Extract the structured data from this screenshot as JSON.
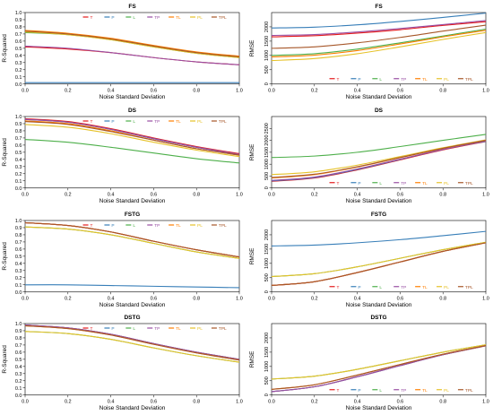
{
  "figure": {
    "legend_labels": [
      "T",
      "P",
      "L",
      "TP",
      "TL",
      "PL",
      "TPL"
    ],
    "legend_colors": [
      "#e41a1c",
      "#377eb8",
      "#4daf4a",
      "#984ea3",
      "#ff7f00",
      "#e6c229",
      "#a65628"
    ]
  },
  "chart_data": [
    {
      "type": "line",
      "title": "FS",
      "xlabel": "Noise Standard Deviation",
      "ylabel": "R-Squared",
      "xlim": [
        0,
        1
      ],
      "ylim": [
        0,
        1
      ],
      "xticks": [
        "0.0",
        "0.2",
        "0.4",
        "0.6",
        "0.8",
        "1.0"
      ],
      "yticks": [
        "0.0",
        "0.1",
        "0.2",
        "0.3",
        "0.4",
        "0.5",
        "0.6",
        "0.7",
        "0.8",
        "0.9",
        "1.0"
      ],
      "legend_position": "top",
      "x": [
        0,
        0.2,
        0.4,
        0.6,
        0.8,
        1.0
      ],
      "series": [
        {
          "name": "T",
          "values": [
            0.52,
            0.49,
            0.44,
            0.37,
            0.31,
            0.27
          ]
        },
        {
          "name": "P",
          "values": [
            0.02,
            0.02,
            0.02,
            0.02,
            0.02,
            0.02
          ]
        },
        {
          "name": "L",
          "values": [
            0.72,
            0.69,
            0.62,
            0.52,
            0.43,
            0.37
          ]
        },
        {
          "name": "TP",
          "values": [
            0.53,
            0.5,
            0.44,
            0.37,
            0.31,
            0.27
          ]
        },
        {
          "name": "TL",
          "values": [
            0.75,
            0.71,
            0.64,
            0.54,
            0.45,
            0.39
          ]
        },
        {
          "name": "PL",
          "values": [
            0.73,
            0.69,
            0.62,
            0.52,
            0.43,
            0.37
          ]
        },
        {
          "name": "TPL",
          "values": [
            0.74,
            0.7,
            0.63,
            0.53,
            0.44,
            0.38
          ]
        }
      ]
    },
    {
      "type": "line",
      "title": "FS",
      "xlabel": "Noise Standard Deviation",
      "ylabel": "RMSE",
      "xlim": [
        0,
        1
      ],
      "ylim": [
        0,
        2500
      ],
      "xticks": [
        "0.0",
        "0.2",
        "0.4",
        "0.6",
        "0.8",
        "1.0"
      ],
      "yticks": [
        "0",
        "500",
        "1000",
        "1500",
        "2000"
      ],
      "legend_position": "bottom",
      "x": [
        0,
        0.2,
        0.4,
        0.6,
        0.8,
        1.0
      ],
      "series": [
        {
          "name": "T",
          "values": [
            1650,
            1690,
            1780,
            1900,
            2050,
            2180
          ]
        },
        {
          "name": "P",
          "values": [
            1960,
            1990,
            2070,
            2190,
            2330,
            2480
          ]
        },
        {
          "name": "L",
          "values": [
            1000,
            1060,
            1220,
            1440,
            1680,
            1920
          ]
        },
        {
          "name": "TP",
          "values": [
            1700,
            1730,
            1820,
            1940,
            2080,
            2220
          ]
        },
        {
          "name": "TL",
          "values": [
            950,
            1010,
            1170,
            1400,
            1650,
            1880
          ]
        },
        {
          "name": "PL",
          "values": [
            820,
            890,
            1060,
            1300,
            1560,
            1800
          ]
        },
        {
          "name": "TPL",
          "values": [
            1250,
            1300,
            1440,
            1630,
            1850,
            2060
          ]
        }
      ]
    },
    {
      "type": "line",
      "title": "DS",
      "xlabel": "Noise Standard Deviation",
      "ylabel": "R-Squared",
      "xlim": [
        0,
        1
      ],
      "ylim": [
        0,
        1
      ],
      "xticks": [
        "0.0",
        "0.2",
        "0.4",
        "0.6",
        "0.8",
        "1.0"
      ],
      "yticks": [
        "0.0",
        "0.1",
        "0.2",
        "0.3",
        "0.4",
        "0.5",
        "0.6",
        "0.7",
        "0.8",
        "0.9",
        "1.0"
      ],
      "legend_position": "top",
      "x": [
        0,
        0.2,
        0.4,
        0.6,
        0.8,
        1.0
      ],
      "series": [
        {
          "name": "T",
          "values": [
            0.97,
            0.93,
            0.83,
            0.7,
            0.58,
            0.48
          ]
        },
        {
          "name": "P",
          "values": [
            0.96,
            0.92,
            0.82,
            0.69,
            0.57,
            0.47
          ]
        },
        {
          "name": "L",
          "values": [
            0.68,
            0.64,
            0.57,
            0.49,
            0.41,
            0.35
          ]
        },
        {
          "name": "TP",
          "values": [
            0.96,
            0.92,
            0.82,
            0.69,
            0.57,
            0.47
          ]
        },
        {
          "name": "TL",
          "values": [
            0.94,
            0.9,
            0.8,
            0.67,
            0.55,
            0.46
          ]
        },
        {
          "name": "PL",
          "values": [
            0.89,
            0.85,
            0.76,
            0.64,
            0.53,
            0.44
          ]
        },
        {
          "name": "TPL",
          "values": [
            0.93,
            0.89,
            0.79,
            0.67,
            0.55,
            0.46
          ]
        }
      ]
    },
    {
      "type": "line",
      "title": "DS",
      "xlabel": "Noise Standard Deviation",
      "ylabel": "RMSE",
      "xlim": [
        0,
        1
      ],
      "ylim": [
        0,
        3000
      ],
      "xticks": [
        "0.0",
        "0.2",
        "0.4",
        "0.6",
        "0.8",
        "1.0"
      ],
      "yticks": [
        "0",
        "500",
        "1000",
        "1500",
        "2000",
        "2500"
      ],
      "legend_position": "bottom",
      "x": [
        0,
        0.2,
        0.4,
        0.6,
        0.8,
        1.0
      ],
      "series": [
        {
          "name": "T",
          "values": [
            280,
            420,
            760,
            1180,
            1600,
            1950
          ]
        },
        {
          "name": "P",
          "values": [
            300,
            440,
            780,
            1200,
            1620,
            1960
          ]
        },
        {
          "name": "L",
          "values": [
            1280,
            1340,
            1500,
            1740,
            2000,
            2250
          ]
        },
        {
          "name": "TP",
          "values": [
            320,
            460,
            800,
            1210,
            1620,
            1970
          ]
        },
        {
          "name": "TL",
          "values": [
            420,
            560,
            880,
            1270,
            1660,
            2000
          ]
        },
        {
          "name": "PL",
          "values": [
            560,
            680,
            960,
            1320,
            1690,
            2020
          ]
        },
        {
          "name": "TPL",
          "values": [
            440,
            580,
            890,
            1280,
            1670,
            2000
          ]
        }
      ]
    },
    {
      "type": "line",
      "title": "FSTG",
      "xlabel": "Noise Standard Deviation",
      "ylabel": "R-Squared",
      "xlim": [
        0,
        1
      ],
      "ylim": [
        0,
        1
      ],
      "xticks": [
        "0.0",
        "0.2",
        "0.4",
        "0.6",
        "0.8",
        "1.0"
      ],
      "yticks": [
        "0.0",
        "0.1",
        "0.2",
        "0.3",
        "0.4",
        "0.5",
        "0.6",
        "0.7",
        "0.8",
        "0.9",
        "1.0"
      ],
      "legend_position": "top",
      "x": [
        0,
        0.2,
        0.4,
        0.6,
        0.8,
        1.0
      ],
      "series": [
        {
          "name": "T",
          "values": [
            0.97,
            0.93,
            0.84,
            0.71,
            0.59,
            0.49
          ]
        },
        {
          "name": "P",
          "values": [
            0.1,
            0.1,
            0.09,
            0.08,
            0.07,
            0.06
          ]
        },
        {
          "name": "L",
          "values": [
            0.91,
            0.88,
            0.8,
            0.68,
            0.56,
            0.47
          ]
        },
        {
          "name": "TP",
          "values": [
            0.97,
            0.93,
            0.84,
            0.71,
            0.59,
            0.49
          ]
        },
        {
          "name": "TL",
          "values": [
            0.97,
            0.93,
            0.84,
            0.71,
            0.59,
            0.49
          ]
        },
        {
          "name": "PL",
          "values": [
            0.91,
            0.88,
            0.8,
            0.68,
            0.56,
            0.47
          ]
        },
        {
          "name": "TPL",
          "values": [
            0.97,
            0.93,
            0.84,
            0.71,
            0.59,
            0.49
          ]
        }
      ]
    },
    {
      "type": "line",
      "title": "FSTG",
      "xlabel": "Noise Standard Deviation",
      "ylabel": "RMSE",
      "xlim": [
        0,
        1
      ],
      "ylim": [
        0,
        2500
      ],
      "xticks": [
        "0.0",
        "0.2",
        "0.4",
        "0.6",
        "0.8",
        "1.0"
      ],
      "yticks": [
        "0",
        "500",
        "1000",
        "1500",
        "2000"
      ],
      "legend_position": "bottom",
      "x": [
        0,
        0.2,
        0.4,
        0.6,
        0.8,
        1.0
      ],
      "series": [
        {
          "name": "T",
          "values": [
            230,
            360,
            680,
            1050,
            1420,
            1720
          ]
        },
        {
          "name": "P",
          "values": [
            1610,
            1640,
            1720,
            1830,
            1970,
            2120
          ]
        },
        {
          "name": "L",
          "values": [
            540,
            640,
            880,
            1180,
            1480,
            1740
          ]
        },
        {
          "name": "TP",
          "values": [
            230,
            360,
            680,
            1050,
            1420,
            1720
          ]
        },
        {
          "name": "TL",
          "values": [
            230,
            360,
            680,
            1050,
            1420,
            1720
          ]
        },
        {
          "name": "PL",
          "values": [
            540,
            640,
            880,
            1180,
            1480,
            1740
          ]
        },
        {
          "name": "TPL",
          "values": [
            230,
            360,
            680,
            1050,
            1420,
            1720
          ]
        }
      ]
    },
    {
      "type": "line",
      "title": "DSTG",
      "xlabel": "Noise Standard Deviation",
      "ylabel": "R-Squared",
      "xlim": [
        0,
        1
      ],
      "ylim": [
        0,
        1
      ],
      "xticks": [
        "0.0",
        "0.2",
        "0.4",
        "0.6",
        "0.8",
        "1.0"
      ],
      "yticks": [
        "0.0",
        "0.1",
        "0.2",
        "0.3",
        "0.4",
        "0.5",
        "0.6",
        "0.7",
        "0.8",
        "0.9",
        "1.0"
      ],
      "legend_position": "top",
      "x": [
        0,
        0.2,
        0.4,
        0.6,
        0.8,
        1.0
      ],
      "series": [
        {
          "name": "T",
          "values": [
            0.98,
            0.94,
            0.85,
            0.72,
            0.6,
            0.5
          ]
        },
        {
          "name": "P",
          "values": [
            0.98,
            0.94,
            0.85,
            0.72,
            0.6,
            0.5
          ]
        },
        {
          "name": "L",
          "values": [
            0.89,
            0.86,
            0.78,
            0.66,
            0.55,
            0.46
          ]
        },
        {
          "name": "TP",
          "values": [
            0.98,
            0.94,
            0.85,
            0.72,
            0.6,
            0.5
          ]
        },
        {
          "name": "TL",
          "values": [
            0.97,
            0.93,
            0.84,
            0.71,
            0.59,
            0.49
          ]
        },
        {
          "name": "PL",
          "values": [
            0.89,
            0.86,
            0.78,
            0.66,
            0.55,
            0.46
          ]
        },
        {
          "name": "TPL",
          "values": [
            0.97,
            0.93,
            0.84,
            0.71,
            0.59,
            0.49
          ]
        }
      ]
    },
    {
      "type": "line",
      "title": "DSTG",
      "xlabel": "Noise Standard Deviation",
      "ylabel": "RMSE",
      "xlim": [
        0,
        1
      ],
      "ylim": [
        0,
        2500
      ],
      "xticks": [
        "0.0",
        "0.2",
        "0.4",
        "0.6",
        "0.8",
        "1.0"
      ],
      "yticks": [
        "0",
        "500",
        "1000",
        "1500",
        "2000"
      ],
      "legend_position": "bottom",
      "x": [
        0,
        0.2,
        0.4,
        0.6,
        0.8,
        1.0
      ],
      "series": [
        {
          "name": "T",
          "values": [
            120,
            290,
            640,
            1030,
            1410,
            1720
          ]
        },
        {
          "name": "P",
          "values": [
            120,
            290,
            640,
            1030,
            1410,
            1720
          ]
        },
        {
          "name": "L",
          "values": [
            560,
            660,
            900,
            1200,
            1500,
            1760
          ]
        },
        {
          "name": "TP",
          "values": [
            120,
            290,
            640,
            1030,
            1410,
            1720
          ]
        },
        {
          "name": "TL",
          "values": [
            200,
            360,
            700,
            1070,
            1430,
            1730
          ]
        },
        {
          "name": "PL",
          "values": [
            560,
            660,
            900,
            1200,
            1500,
            1760
          ]
        },
        {
          "name": "TPL",
          "values": [
            200,
            360,
            700,
            1070,
            1430,
            1730
          ]
        }
      ]
    }
  ]
}
